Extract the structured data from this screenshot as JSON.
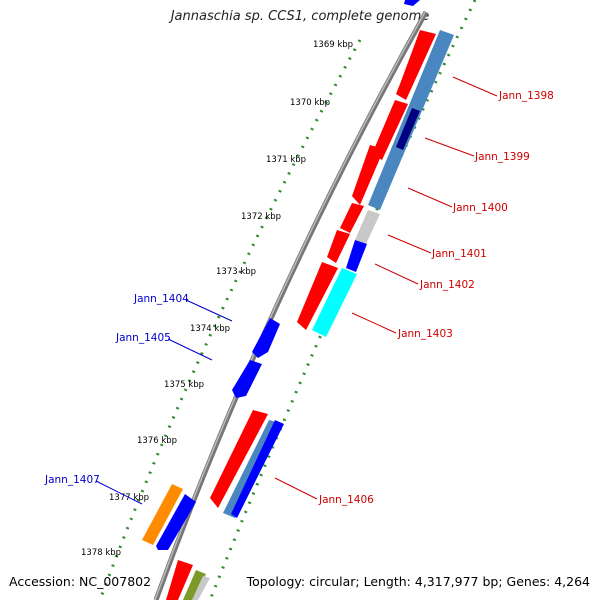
{
  "title": "Jannaschia sp. CCS1, complete genome",
  "footer": {
    "accession": "Accession: NC_007802",
    "summary": "Topology: circular; Length: 4,317,977 bp; Genes: 4,264"
  },
  "ticks": [
    "1369 kbp",
    "1370 kbp",
    "1371 kbp",
    "1372 kbp",
    "1373 kbp",
    "1374 kbp",
    "1375 kbp",
    "1376 kbp",
    "1377 kbp",
    "1378 kbp"
  ],
  "colors": {
    "red": "#ff0000",
    "blue": "#0000ff",
    "steel": "#4a87c0",
    "gray": "#c8c8c8",
    "cyan": "#00ffff",
    "orange": "#ff8c00",
    "olive": "#7a9a2a",
    "navy": "#000080",
    "tick": "#2e8b2e",
    "label_red": "#cc0000",
    "label_blue": "#0000cc"
  },
  "labels": [
    {
      "text": "Jann_1398",
      "color": "red"
    },
    {
      "text": "Jann_1399",
      "color": "red"
    },
    {
      "text": "Jann_1400",
      "color": "red"
    },
    {
      "text": "Jann_1401",
      "color": "red"
    },
    {
      "text": "Jann_1402",
      "color": "red"
    },
    {
      "text": "Jann_1403",
      "color": "red"
    },
    {
      "text": "Jann_1404",
      "color": "blue"
    },
    {
      "text": "Jann_1405",
      "color": "blue"
    },
    {
      "text": "Jann_1406",
      "color": "red"
    },
    {
      "text": "Jann_1407",
      "color": "blue"
    }
  ]
}
